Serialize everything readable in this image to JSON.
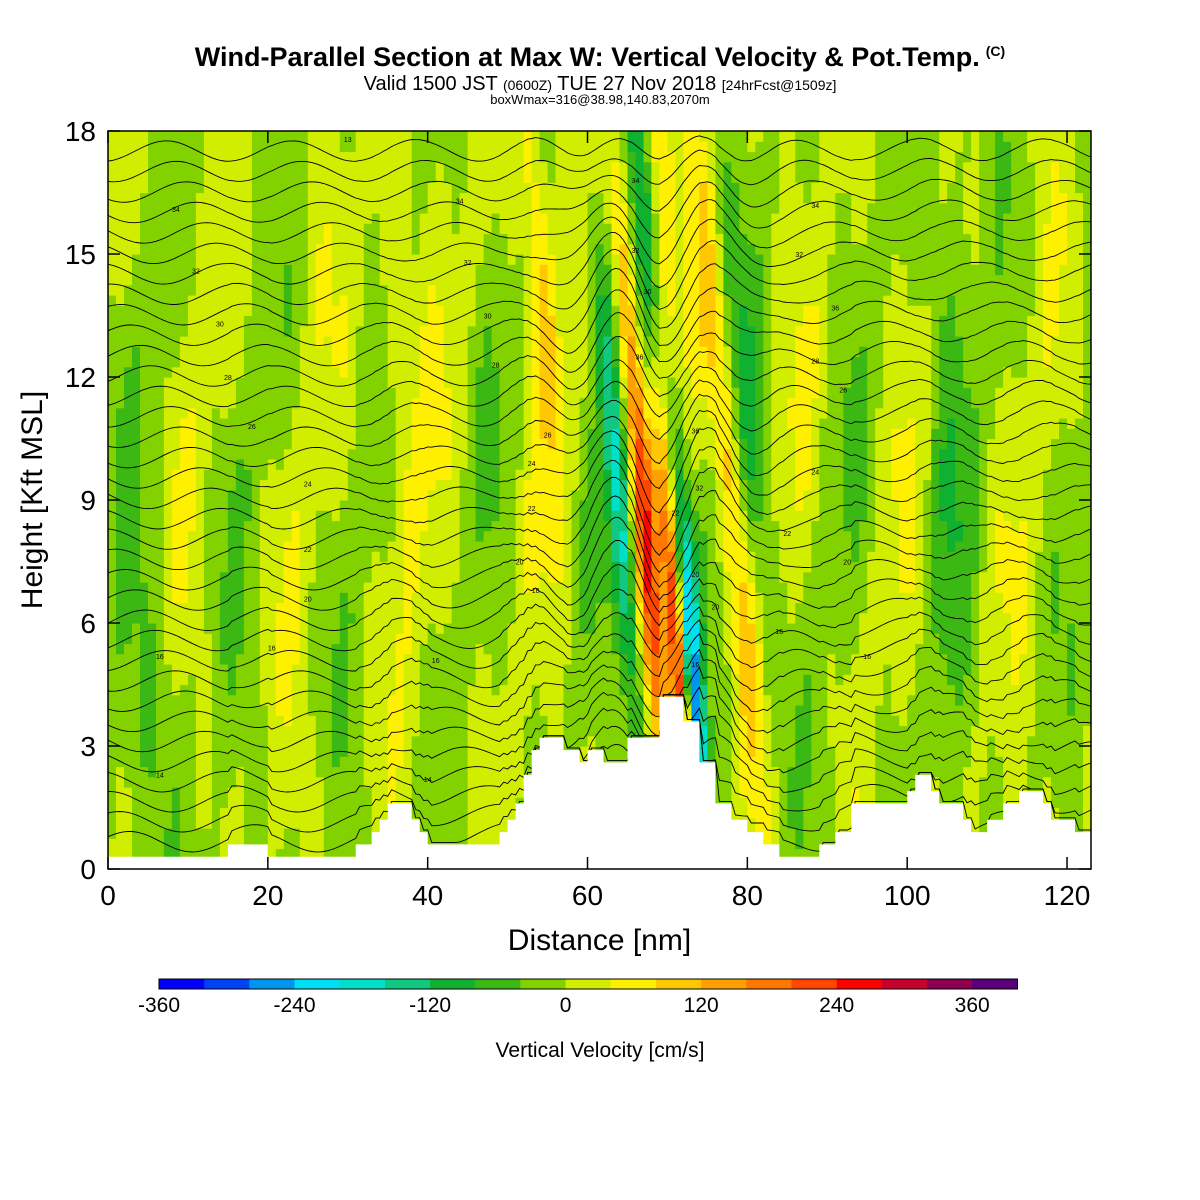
{
  "header": {
    "title": "Wind-Parallel Section at Max W: Vertical Velocity & Pot.Temp.",
    "copyright": "(C)",
    "valid_prefix": "Valid 1500 JST",
    "utc": "(0600Z)",
    "valid_date": "TUE 27 Nov 2018",
    "forecast": "[24hrFcst@1509z]",
    "boxline": "boxWmax=316@38.98,140.83,2070m"
  },
  "chart_data": {
    "type": "heatmap",
    "xlabel": "Distance [nm]",
    "ylabel": "Height [Kft MSL]",
    "xlim": [
      0,
      123
    ],
    "ylim": [
      0,
      18
    ],
    "x_ticks": [
      0,
      20,
      40,
      60,
      80,
      100,
      120
    ],
    "y_ticks": [
      0,
      3,
      6,
      9,
      12,
      15,
      18
    ],
    "colorbar": {
      "title": "Vertical Velocity [cm/s]",
      "min": -360,
      "max": 420,
      "step": 40,
      "tick_values": [
        -360,
        -240,
        -120,
        0,
        120,
        240,
        360
      ],
      "colors": [
        "#0000ff",
        "#0042f5",
        "#0096f0",
        "#00e0f5",
        "#00e0c8",
        "#10c880",
        "#10b030",
        "#3cb814",
        "#82d200",
        "#d2ee00",
        "#fff000",
        "#ffc800",
        "#ffa000",
        "#ff7800",
        "#ff4600",
        "#ff0000",
        "#c8002d",
        "#8c0050",
        "#5a0078"
      ]
    },
    "terrain_kft": [
      [
        0,
        0.3
      ],
      [
        15,
        0.3
      ],
      [
        15,
        0.6
      ],
      [
        20,
        0.6
      ],
      [
        20,
        0.3
      ],
      [
        31,
        0.3
      ],
      [
        31,
        0.6
      ],
      [
        33,
        0.6
      ],
      [
        33,
        0.9
      ],
      [
        34,
        0.9
      ],
      [
        34,
        1.2
      ],
      [
        35,
        1.2
      ],
      [
        35,
        1.6
      ],
      [
        38,
        1.6
      ],
      [
        38,
        1.2
      ],
      [
        39,
        1.2
      ],
      [
        39,
        0.9
      ],
      [
        40,
        0.9
      ],
      [
        40,
        0.6
      ],
      [
        49,
        0.6
      ],
      [
        49,
        0.9
      ],
      [
        50,
        0.9
      ],
      [
        50,
        1.2
      ],
      [
        51,
        1.2
      ],
      [
        51,
        1.6
      ],
      [
        52,
        1.6
      ],
      [
        52,
        2.3
      ],
      [
        53,
        2.3
      ],
      [
        53,
        2.9
      ],
      [
        54,
        2.9
      ],
      [
        54,
        3.2
      ],
      [
        57,
        3.2
      ],
      [
        57,
        2.9
      ],
      [
        59,
        2.9
      ],
      [
        59,
        2.6
      ],
      [
        60,
        2.6
      ],
      [
        60,
        2.9
      ],
      [
        62,
        2.9
      ],
      [
        62,
        2.6
      ],
      [
        65,
        2.6
      ],
      [
        65,
        3.2
      ],
      [
        69,
        3.2
      ],
      [
        69,
        4.2
      ],
      [
        72,
        4.2
      ],
      [
        72,
        3.6
      ],
      [
        74,
        3.6
      ],
      [
        74,
        2.6
      ],
      [
        76,
        2.6
      ],
      [
        76,
        1.6
      ],
      [
        78,
        1.6
      ],
      [
        78,
        1.2
      ],
      [
        80,
        1.2
      ],
      [
        80,
        0.9
      ],
      [
        82,
        0.9
      ],
      [
        82,
        0.6
      ],
      [
        84,
        0.6
      ],
      [
        84,
        0.3
      ],
      [
        89,
        0.3
      ],
      [
        89,
        0.6
      ],
      [
        91,
        0.6
      ],
      [
        91,
        0.9
      ],
      [
        93,
        0.9
      ],
      [
        93,
        1.6
      ],
      [
        100,
        1.6
      ],
      [
        100,
        1.9
      ],
      [
        101,
        1.9
      ],
      [
        101,
        2.3
      ],
      [
        103,
        2.3
      ],
      [
        103,
        1.9
      ],
      [
        104,
        1.9
      ],
      [
        104,
        1.6
      ],
      [
        107,
        1.6
      ],
      [
        107,
        1.2
      ],
      [
        108,
        1.2
      ],
      [
        108,
        0.9
      ],
      [
        110,
        0.9
      ],
      [
        110,
        1.2
      ],
      [
        112,
        1.2
      ],
      [
        112,
        1.6
      ],
      [
        114,
        1.6
      ],
      [
        114,
        1.9
      ],
      [
        117,
        1.9
      ],
      [
        117,
        1.6
      ],
      [
        118,
        1.6
      ],
      [
        118,
        1.2
      ],
      [
        121,
        1.2
      ],
      [
        121,
        0.9
      ],
      [
        123,
        0.9
      ]
    ],
    "theta_contours_C": [
      14,
      16,
      18,
      20,
      22,
      24,
      26,
      28,
      30,
      32,
      34,
      36
    ],
    "theta_labels": [
      {
        "x": 6.5,
        "y": 2.3,
        "text": "14"
      },
      {
        "x": 40,
        "y": 2.2,
        "text": "14"
      },
      {
        "x": 6.5,
        "y": 5.2,
        "text": "16"
      },
      {
        "x": 20.5,
        "y": 5.4,
        "text": "16"
      },
      {
        "x": 41,
        "y": 5.1,
        "text": "16"
      },
      {
        "x": 73.5,
        "y": 5.0,
        "text": "16"
      },
      {
        "x": 84,
        "y": 5.8,
        "text": "16"
      },
      {
        "x": 95,
        "y": 5.2,
        "text": "16"
      },
      {
        "x": 25,
        "y": 6.6,
        "text": "20"
      },
      {
        "x": 53.5,
        "y": 6.8,
        "text": "18"
      },
      {
        "x": 51.5,
        "y": 7.5,
        "text": "20"
      },
      {
        "x": 25,
        "y": 7.8,
        "text": "22"
      },
      {
        "x": 53,
        "y": 8.8,
        "text": "22"
      },
      {
        "x": 73.5,
        "y": 7.2,
        "text": "20"
      },
      {
        "x": 76,
        "y": 6.4,
        "text": "20"
      },
      {
        "x": 71,
        "y": 8.7,
        "text": "22"
      },
      {
        "x": 85,
        "y": 8.2,
        "text": "22"
      },
      {
        "x": 92.5,
        "y": 7.5,
        "text": "20"
      },
      {
        "x": 25,
        "y": 9.4,
        "text": "24"
      },
      {
        "x": 53,
        "y": 9.9,
        "text": "24"
      },
      {
        "x": 74,
        "y": 9.3,
        "text": "32"
      },
      {
        "x": 88.5,
        "y": 9.7,
        "text": "24"
      },
      {
        "x": 18,
        "y": 10.8,
        "text": "26"
      },
      {
        "x": 55,
        "y": 10.6,
        "text": "26"
      },
      {
        "x": 73.5,
        "y": 10.7,
        "text": "36"
      },
      {
        "x": 92,
        "y": 11.7,
        "text": "26"
      },
      {
        "x": 15,
        "y": 12.0,
        "text": "28"
      },
      {
        "x": 48.5,
        "y": 12.3,
        "text": "28"
      },
      {
        "x": 66.5,
        "y": 12.5,
        "text": "36"
      },
      {
        "x": 88.5,
        "y": 12.4,
        "text": "28"
      },
      {
        "x": 14,
        "y": 13.3,
        "text": "30"
      },
      {
        "x": 47.5,
        "y": 13.5,
        "text": "30"
      },
      {
        "x": 67.5,
        "y": 14.1,
        "text": "30"
      },
      {
        "x": 91,
        "y": 13.7,
        "text": "36"
      },
      {
        "x": 11,
        "y": 14.6,
        "text": "32"
      },
      {
        "x": 45,
        "y": 14.8,
        "text": "32"
      },
      {
        "x": 66,
        "y": 15.1,
        "text": "32"
      },
      {
        "x": 86.5,
        "y": 15.0,
        "text": "32"
      },
      {
        "x": 8.5,
        "y": 16.1,
        "text": "34"
      },
      {
        "x": 44,
        "y": 16.3,
        "text": "34"
      },
      {
        "x": 66,
        "y": 16.8,
        "text": "34"
      },
      {
        "x": 88.5,
        "y": 16.2,
        "text": "34"
      },
      {
        "x": 30,
        "y": 17.8,
        "text": "13"
      }
    ]
  }
}
